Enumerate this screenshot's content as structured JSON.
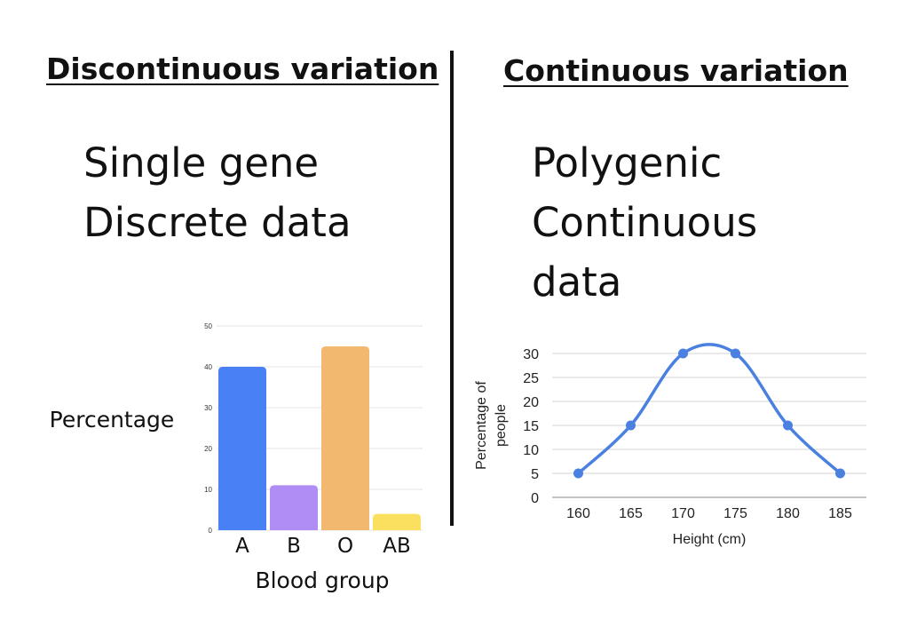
{
  "left": {
    "heading": "Discontinuous variation",
    "lines": [
      "Single gene",
      "Discrete data"
    ]
  },
  "right": {
    "heading": "Continuous variation",
    "lines": [
      "Polygenic",
      "Continuous",
      "data"
    ]
  },
  "chart_data": [
    {
      "type": "bar",
      "categories": [
        "A",
        "B",
        "O",
        "AB"
      ],
      "values": [
        40,
        11,
        45,
        4
      ],
      "colors": [
        "#4a80f5",
        "#b08cf5",
        "#f3b870",
        "#fbe060"
      ],
      "ylabel": "Percentage",
      "xlabel": "Blood group",
      "ylim": [
        0,
        50
      ],
      "yticks": [
        0,
        10,
        20,
        30,
        40,
        50
      ],
      "grid": true
    },
    {
      "type": "line",
      "x": [
        160,
        165,
        170,
        175,
        180,
        185
      ],
      "y": [
        5,
        15,
        30,
        30,
        15,
        5
      ],
      "color": "#4a80e0",
      "smooth": true,
      "xlabel": "Height (cm)",
      "ylabel": "Percentage of people",
      "xlim": [
        157.5,
        187.5
      ],
      "ylim": [
        0,
        30
      ],
      "yticks": [
        0,
        5,
        10,
        15,
        20,
        25,
        30
      ],
      "grid": true
    }
  ]
}
